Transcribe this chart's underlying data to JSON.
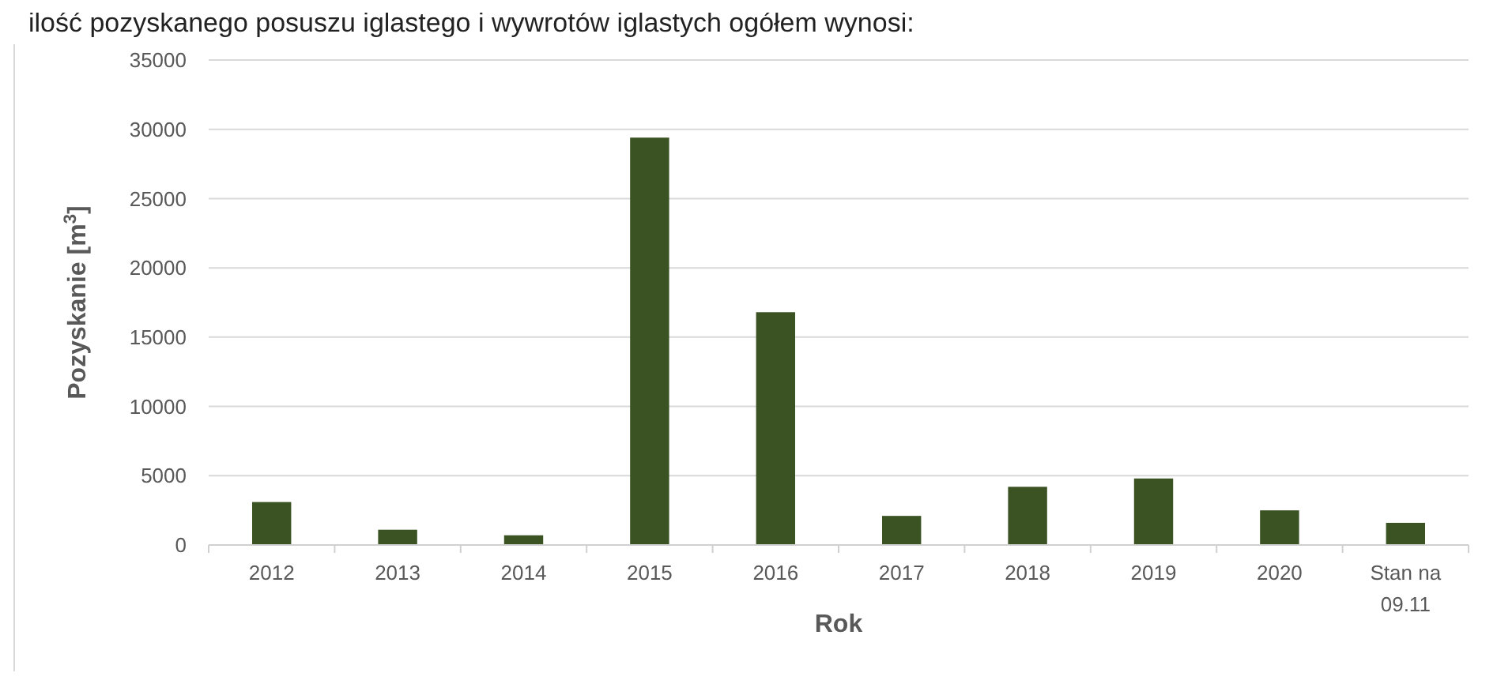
{
  "chart_data": {
    "type": "bar",
    "title": "ilość pozyskanego posuszu iglastego i wywrotów iglastych ogółem wynosi:",
    "xlabel": "Rok",
    "ylabel": "Pozyskanie [m$^{3}$]",
    "categories": [
      "2012",
      "2013",
      "2014",
      "2015",
      "2016",
      "2017",
      "2018",
      "2019",
      "2020",
      "Stan na 09.11"
    ],
    "values": [
      3100,
      1100,
      700,
      29400,
      16800,
      2100,
      4200,
      4800,
      2500,
      1600
    ],
    "color": "#3b5323",
    "ylim": [
      0,
      35000
    ],
    "yticks": [
      0,
      5000,
      10000,
      15000,
      20000,
      25000,
      30000,
      35000
    ],
    "grid": "y"
  }
}
